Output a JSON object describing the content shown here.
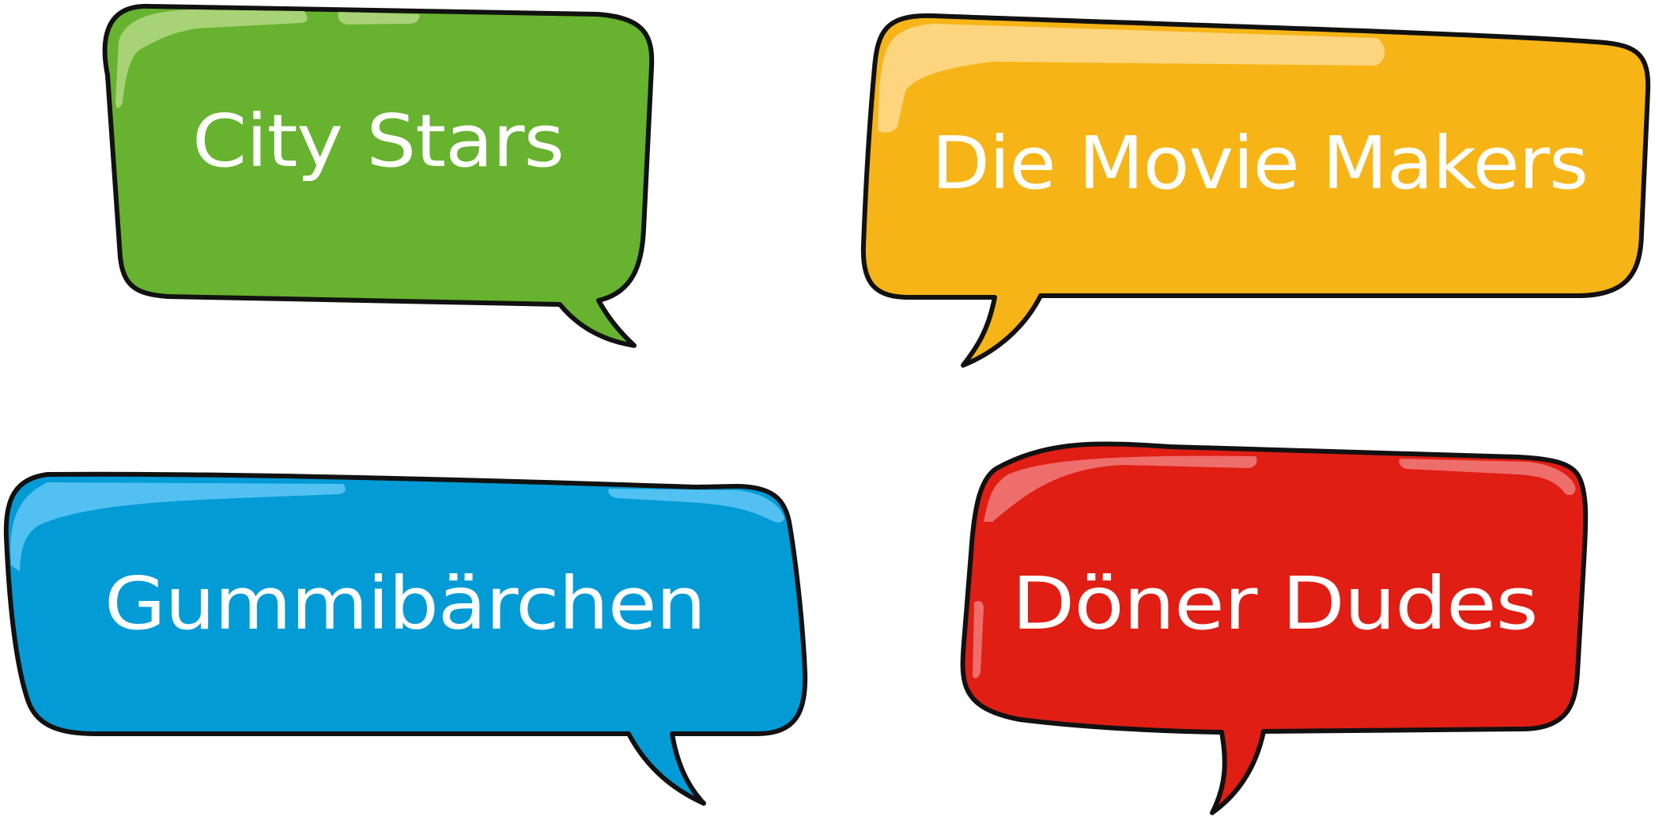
{
  "bubbles": [
    {
      "id": "city-stars",
      "label": "City Stars",
      "color": "#67b22f",
      "highlight": "#a8d276"
    },
    {
      "id": "die-movie-makers",
      "label": "Die Movie Makers",
      "color": "#f6b416",
      "highlight": "#fdd57e"
    },
    {
      "id": "gummibaerchen",
      "label": "Gummibärchen",
      "color": "#029bd6",
      "highlight": "#52c1f1"
    },
    {
      "id": "doener-dudes",
      "label": "Döner Dudes",
      "color": "#e01e14",
      "highlight": "#ee6e6c"
    }
  ]
}
